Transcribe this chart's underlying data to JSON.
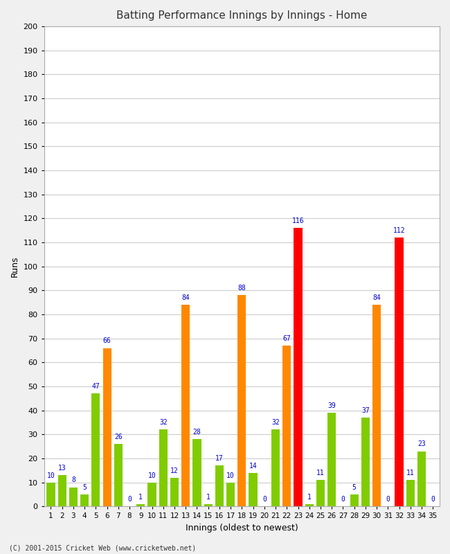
{
  "title": "Batting Performance Innings by Innings - Home",
  "xlabel": "Innings (oldest to newest)",
  "ylabel": "Runs",
  "background_color": "#f0f0f0",
  "plot_bg_color": "#ffffff",
  "ylim": [
    0,
    200
  ],
  "yticks": [
    0,
    10,
    20,
    30,
    40,
    50,
    60,
    70,
    80,
    90,
    100,
    110,
    120,
    130,
    140,
    150,
    160,
    170,
    180,
    190,
    200
  ],
  "innings": [
    1,
    2,
    3,
    4,
    5,
    6,
    7,
    8,
    9,
    10,
    11,
    12,
    13,
    14,
    15,
    16,
    17,
    18,
    19,
    20,
    21,
    22,
    23,
    24,
    25,
    26,
    27,
    28,
    29,
    30,
    31,
    32,
    33,
    34,
    35
  ],
  "values": [
    10,
    13,
    8,
    5,
    47,
    66,
    26,
    0,
    1,
    10,
    32,
    12,
    84,
    28,
    1,
    17,
    10,
    88,
    14,
    0,
    32,
    67,
    116,
    1,
    11,
    39,
    0,
    5,
    37,
    84,
    0,
    112,
    11,
    23,
    0
  ],
  "colors": [
    "#80cc00",
    "#80cc00",
    "#80cc00",
    "#80cc00",
    "#80cc00",
    "#ff8800",
    "#80cc00",
    "#ff8800",
    "#80cc00",
    "#80cc00",
    "#80cc00",
    "#80cc00",
    "#ff8800",
    "#80cc00",
    "#80cc00",
    "#80cc00",
    "#80cc00",
    "#ff8800",
    "#80cc00",
    "#80cc00",
    "#80cc00",
    "#ff8800",
    "#ff0000",
    "#80cc00",
    "#80cc00",
    "#80cc00",
    "#80cc00",
    "#80cc00",
    "#80cc00",
    "#ff8800",
    "#80cc00",
    "#ff0000",
    "#80cc00",
    "#80cc00",
    "#80cc00"
  ],
  "label_color": "#0000cc",
  "footer": "(C) 2001-2015 Cricket Web (www.cricketweb.net)"
}
